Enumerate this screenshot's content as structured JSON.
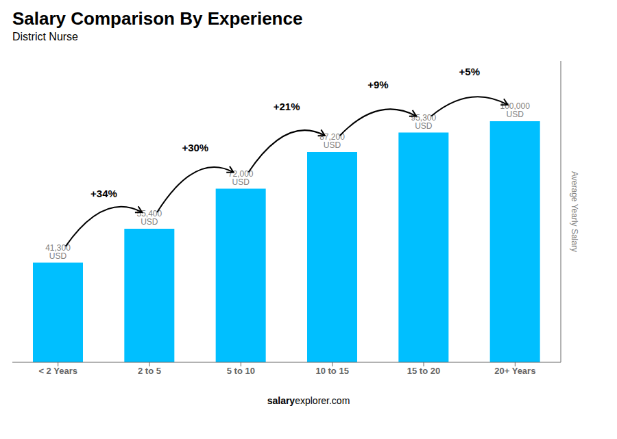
{
  "chart_data": {
    "type": "bar",
    "title": "Salary Comparison By Experience",
    "subtitle": "District Nurse",
    "categories": [
      "< 2 Years",
      "2 to 5",
      "5 to 10",
      "10 to 15",
      "15 to 20",
      "20+ Years"
    ],
    "values": [
      41300,
      55400,
      72000,
      87200,
      95300,
      100000
    ],
    "value_labels": [
      "41,300 USD",
      "55,400 USD",
      "72,000 USD",
      "87,200 USD",
      "95,300 USD",
      "100,000 USD"
    ],
    "data_labels": true,
    "annotations": [
      "+34%",
      "+30%",
      "+21%",
      "+9%",
      "+5%"
    ],
    "ylabel": "Average Yearly Salary",
    "footer": [
      "salary",
      "explorer.com"
    ],
    "color": "#00BFFF",
    "ylim": [
      0,
      125000
    ],
    "tick_labels": "x",
    "grid": false
  }
}
